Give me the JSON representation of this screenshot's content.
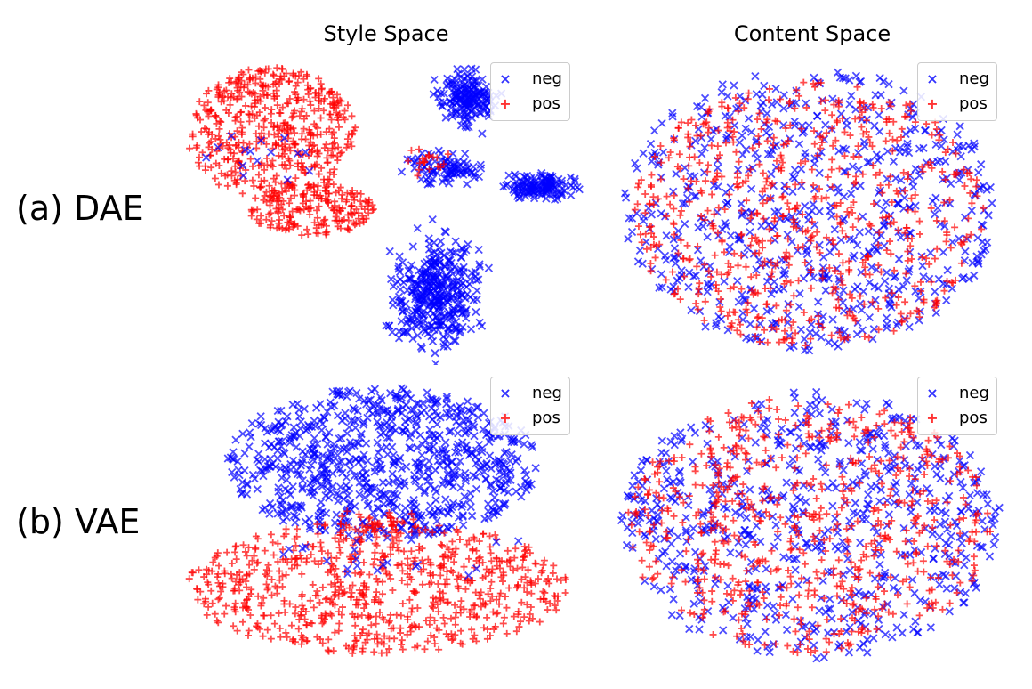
{
  "titles": {
    "style": "Style Space",
    "content": "Content Space"
  },
  "rows": [
    {
      "label": "(a) DAE"
    },
    {
      "label": "(b) VAE"
    }
  ],
  "legend": {
    "neg": "neg",
    "pos": "pos",
    "neg_marker": "×",
    "pos_marker": "+"
  },
  "colors": {
    "neg": "#0000ff",
    "pos": "#ff0000"
  },
  "chart_data": [
    {
      "type": "scatter",
      "title": "Style Space",
      "row": "(a) DAE",
      "series": [
        {
          "name": "neg",
          "marker": "x",
          "color": "#0000ff"
        },
        {
          "name": "pos",
          "marker": "+",
          "color": "#ff0000"
        }
      ],
      "legend_position": "upper right",
      "axes": "off"
    },
    {
      "type": "scatter",
      "title": "Content Space",
      "row": "(a) DAE",
      "series": [
        {
          "name": "neg",
          "marker": "x",
          "color": "#0000ff"
        },
        {
          "name": "pos",
          "marker": "+",
          "color": "#ff0000"
        }
      ],
      "legend_position": "upper right",
      "axes": "off"
    },
    {
      "type": "scatter",
      "title": "Style Space",
      "row": "(b) VAE",
      "series": [
        {
          "name": "neg",
          "marker": "x",
          "color": "#0000ff"
        },
        {
          "name": "pos",
          "marker": "+",
          "color": "#ff0000"
        }
      ],
      "legend_position": "upper right",
      "axes": "off"
    },
    {
      "type": "scatter",
      "title": "Content Space",
      "row": "(b) VAE",
      "series": [
        {
          "name": "neg",
          "marker": "x",
          "color": "#0000ff"
        },
        {
          "name": "pos",
          "marker": "+",
          "color": "#ff0000"
        }
      ],
      "legend_position": "upper right",
      "axes": "off"
    }
  ]
}
